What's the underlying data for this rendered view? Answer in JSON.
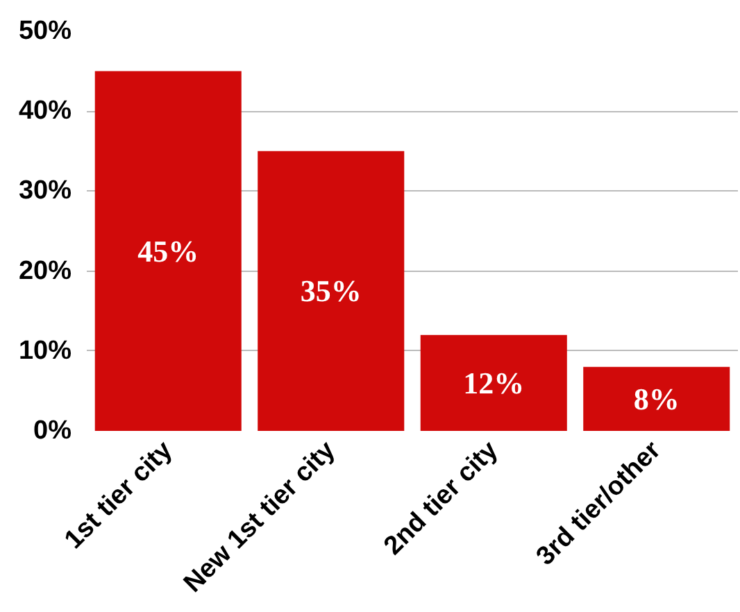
{
  "chart_data": {
    "type": "bar",
    "categories": [
      "1st tier city",
      "New 1st tier city",
      "2nd tier city",
      "3rd tier/other"
    ],
    "values": [
      45,
      35,
      12,
      8
    ],
    "color": "#d10a0a",
    "value_labels": [
      "45%",
      "35%",
      "12%",
      "8%"
    ],
    "ylim": [
      0,
      50
    ],
    "yticks": [
      {
        "value": 0,
        "label": "0%"
      },
      {
        "value": 10,
        "label": "10%"
      },
      {
        "value": 20,
        "label": "20%"
      },
      {
        "value": 30,
        "label": "30%"
      },
      {
        "value": 40,
        "label": "40%"
      },
      {
        "value": 50,
        "label": "50%"
      }
    ],
    "grid": "y"
  }
}
